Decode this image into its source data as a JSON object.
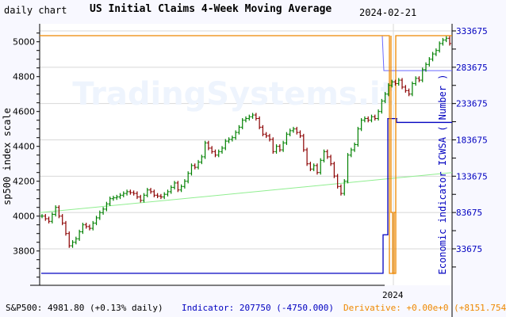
{
  "header": {
    "left_label": "daily chart",
    "title": "US Initial Claims 4-Week Moving Average",
    "date": "2024-02-21"
  },
  "footer": {
    "sp500": "S&P500: 4981.80 (+0.13% daily)",
    "indicator": "Indicator: 207750 (-4750.000)",
    "derivative": "Derivative: +0.00e+0 (+8151.754"
  },
  "watermark": "TradingSystems.it",
  "colors": {
    "up": "#008000",
    "down": "#8b0000",
    "indicator": "#0000c0",
    "derivative": "#ee8800",
    "ma": "#6a6aff",
    "trend": "#90ee90",
    "grid": "#d8d8d8"
  },
  "chart_data": {
    "type": "line",
    "title": "US Initial Claims 4-Week Moving Average",
    "x_tick_labels": [
      "2024"
    ],
    "left_axis": {
      "label": "sp500 index scale",
      "ticks": [
        3800,
        4000,
        4200,
        4400,
        4600,
        4800,
        5000
      ]
    },
    "right_axis": {
      "label": "Economic indicator ICWSA ( Number )",
      "ticks": [
        33675,
        83675,
        133675,
        183675,
        233675,
        283675,
        333675
      ]
    },
    "grid": true,
    "sp500_close": [
      4000,
      3985,
      3970,
      4010,
      4050,
      4000,
      3960,
      3900,
      3830,
      3850,
      3870,
      3910,
      3950,
      3940,
      3930,
      3960,
      3990,
      4020,
      4040,
      4070,
      4100,
      4105,
      4110,
      4120,
      4130,
      4140,
      4135,
      4130,
      4110,
      4090,
      4120,
      4150,
      4140,
      4120,
      4115,
      4110,
      4125,
      4140,
      4165,
      4190,
      4150,
      4170,
      4200,
      4245,
      4290,
      4280,
      4310,
      4340,
      4420,
      4390,
      4370,
      4350,
      4370,
      4390,
      4430,
      4440,
      4450,
      4480,
      4510,
      4550,
      4560,
      4570,
      4580,
      4560,
      4510,
      4470,
      4460,
      4440,
      4370,
      4400,
      4380,
      4420,
      4470,
      4490,
      4500,
      4480,
      4460,
      4380,
      4300,
      4270,
      4290,
      4250,
      4320,
      4370,
      4340,
      4300,
      4230,
      4170,
      4130,
      4200,
      4350,
      4380,
      4410,
      4500,
      4550,
      4560,
      4550,
      4570,
      4560,
      4600,
      4660,
      4700,
      4750,
      4770,
      4760,
      4780,
      4740,
      4720,
      4700,
      4760,
      4790,
      4780,
      4840,
      4870,
      4900,
      4930,
      4950,
      4990,
      5010,
      5020,
      4990
    ],
    "trend_line": {
      "start": 4020,
      "end": 4250
    },
    "indicator": {
      "before": 0,
      "steps": [
        53000,
        213000,
        213000,
        213000
      ],
      "current": 207750
    },
    "moving_average": {
      "start": 327000,
      "current": 279000
    },
    "derivative": {
      "current": 0,
      "dip": -8151.754
    }
  }
}
